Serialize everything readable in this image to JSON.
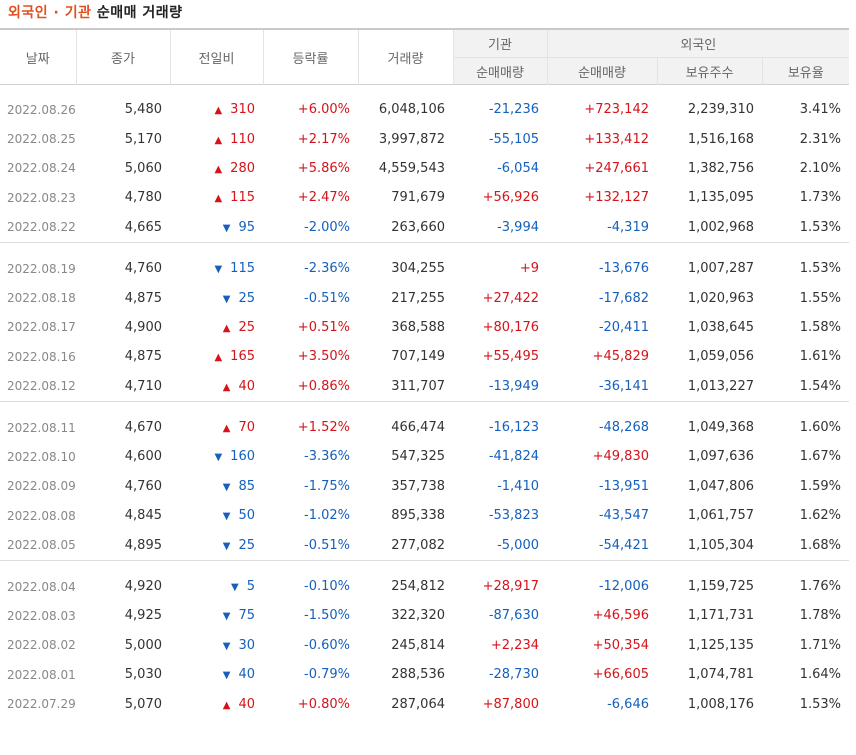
{
  "title": {
    "accent": "외국인 · 기관",
    "plain": "순매매 거래량"
  },
  "headers": {
    "date": "날짜",
    "close": "종가",
    "change": "전일비",
    "rate": "등락률",
    "volume": "거래량",
    "inst_group": "기관",
    "foreign_group": "외국인",
    "inst_net": "순매매량",
    "foreign_net": "순매매량",
    "holdings": "보유주수",
    "ratio": "보유율"
  },
  "colors": {
    "up": "#d4141a",
    "down": "#1560bd",
    "accent": "#e05020"
  },
  "groups": [
    [
      {
        "date": "2022.08.26",
        "close": "5,480",
        "dir": "up",
        "chg": "310",
        "rate": "+6.00%",
        "vol": "6,048,106",
        "inst": "-21,236",
        "frgn": "+723,142",
        "hold": "2,239,310",
        "ratio": "3.41%"
      },
      {
        "date": "2022.08.25",
        "close": "5,170",
        "dir": "up",
        "chg": "110",
        "rate": "+2.17%",
        "vol": "3,997,872",
        "inst": "-55,105",
        "frgn": "+133,412",
        "hold": "1,516,168",
        "ratio": "2.31%"
      },
      {
        "date": "2022.08.24",
        "close": "5,060",
        "dir": "up",
        "chg": "280",
        "rate": "+5.86%",
        "vol": "4,559,543",
        "inst": "-6,054",
        "frgn": "+247,661",
        "hold": "1,382,756",
        "ratio": "2.10%"
      },
      {
        "date": "2022.08.23",
        "close": "4,780",
        "dir": "up",
        "chg": "115",
        "rate": "+2.47%",
        "vol": "791,679",
        "inst": "+56,926",
        "frgn": "+132,127",
        "hold": "1,135,095",
        "ratio": "1.73%"
      },
      {
        "date": "2022.08.22",
        "close": "4,665",
        "dir": "down",
        "chg": "95",
        "rate": "-2.00%",
        "vol": "263,660",
        "inst": "-3,994",
        "frgn": "-4,319",
        "hold": "1,002,968",
        "ratio": "1.53%"
      }
    ],
    [
      {
        "date": "2022.08.19",
        "close": "4,760",
        "dir": "down",
        "chg": "115",
        "rate": "-2.36%",
        "vol": "304,255",
        "inst": "+9",
        "frgn": "-13,676",
        "hold": "1,007,287",
        "ratio": "1.53%"
      },
      {
        "date": "2022.08.18",
        "close": "4,875",
        "dir": "down",
        "chg": "25",
        "rate": "-0.51%",
        "vol": "217,255",
        "inst": "+27,422",
        "frgn": "-17,682",
        "hold": "1,020,963",
        "ratio": "1.55%"
      },
      {
        "date": "2022.08.17",
        "close": "4,900",
        "dir": "up",
        "chg": "25",
        "rate": "+0.51%",
        "vol": "368,588",
        "inst": "+80,176",
        "frgn": "-20,411",
        "hold": "1,038,645",
        "ratio": "1.58%"
      },
      {
        "date": "2022.08.16",
        "close": "4,875",
        "dir": "up",
        "chg": "165",
        "rate": "+3.50%",
        "vol": "707,149",
        "inst": "+55,495",
        "frgn": "+45,829",
        "hold": "1,059,056",
        "ratio": "1.61%"
      },
      {
        "date": "2022.08.12",
        "close": "4,710",
        "dir": "up",
        "chg": "40",
        "rate": "+0.86%",
        "vol": "311,707",
        "inst": "-13,949",
        "frgn": "-36,141",
        "hold": "1,013,227",
        "ratio": "1.54%"
      }
    ],
    [
      {
        "date": "2022.08.11",
        "close": "4,670",
        "dir": "up",
        "chg": "70",
        "rate": "+1.52%",
        "vol": "466,474",
        "inst": "-16,123",
        "frgn": "-48,268",
        "hold": "1,049,368",
        "ratio": "1.60%"
      },
      {
        "date": "2022.08.10",
        "close": "4,600",
        "dir": "down",
        "chg": "160",
        "rate": "-3.36%",
        "vol": "547,325",
        "inst": "-41,824",
        "frgn": "+49,830",
        "hold": "1,097,636",
        "ratio": "1.67%"
      },
      {
        "date": "2022.08.09",
        "close": "4,760",
        "dir": "down",
        "chg": "85",
        "rate": "-1.75%",
        "vol": "357,738",
        "inst": "-1,410",
        "frgn": "-13,951",
        "hold": "1,047,806",
        "ratio": "1.59%"
      },
      {
        "date": "2022.08.08",
        "close": "4,845",
        "dir": "down",
        "chg": "50",
        "rate": "-1.02%",
        "vol": "895,338",
        "inst": "-53,823",
        "frgn": "-43,547",
        "hold": "1,061,757",
        "ratio": "1.62%"
      },
      {
        "date": "2022.08.05",
        "close": "4,895",
        "dir": "down",
        "chg": "25",
        "rate": "-0.51%",
        "vol": "277,082",
        "inst": "-5,000",
        "frgn": "-54,421",
        "hold": "1,105,304",
        "ratio": "1.68%"
      }
    ],
    [
      {
        "date": "2022.08.04",
        "close": "4,920",
        "dir": "down",
        "chg": "5",
        "rate": "-0.10%",
        "vol": "254,812",
        "inst": "+28,917",
        "frgn": "-12,006",
        "hold": "1,159,725",
        "ratio": "1.76%"
      },
      {
        "date": "2022.08.03",
        "close": "4,925",
        "dir": "down",
        "chg": "75",
        "rate": "-1.50%",
        "vol": "322,320",
        "inst": "-87,630",
        "frgn": "+46,596",
        "hold": "1,171,731",
        "ratio": "1.78%"
      },
      {
        "date": "2022.08.02",
        "close": "5,000",
        "dir": "down",
        "chg": "30",
        "rate": "-0.60%",
        "vol": "245,814",
        "inst": "+2,234",
        "frgn": "+50,354",
        "hold": "1,125,135",
        "ratio": "1.71%"
      },
      {
        "date": "2022.08.01",
        "close": "5,030",
        "dir": "down",
        "chg": "40",
        "rate": "-0.79%",
        "vol": "288,536",
        "inst": "-28,730",
        "frgn": "+66,605",
        "hold": "1,074,781",
        "ratio": "1.64%"
      },
      {
        "date": "2022.07.29",
        "close": "5,070",
        "dir": "up",
        "chg": "40",
        "rate": "+0.80%",
        "vol": "287,064",
        "inst": "+87,800",
        "frgn": "-6,646",
        "hold": "1,008,176",
        "ratio": "1.53%"
      }
    ]
  ]
}
